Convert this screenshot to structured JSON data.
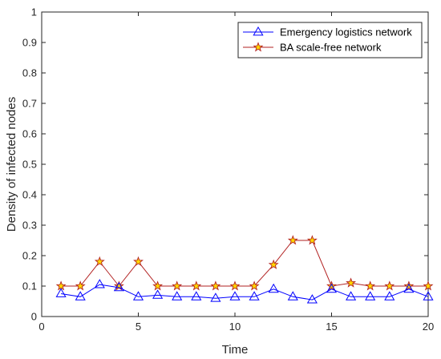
{
  "chart_data": {
    "type": "line",
    "title": "",
    "xlabel": "Time",
    "ylabel": "Density of infected nodes",
    "xlim": [
      0,
      20
    ],
    "ylim": [
      0,
      1
    ],
    "xticks": [
      "0",
      "5",
      "10",
      "15",
      "20"
    ],
    "yticks": [
      "0",
      "0.1",
      "0.2",
      "0.3",
      "0.4",
      "0.5",
      "0.6",
      "0.7",
      "0.8",
      "0.9",
      "1"
    ],
    "grid": false,
    "legend_position": "top-right",
    "x": [
      1,
      2,
      3,
      4,
      5,
      6,
      7,
      8,
      9,
      10,
      11,
      12,
      13,
      14,
      15,
      16,
      17,
      18,
      19,
      20
    ],
    "series": [
      {
        "name": "Emergency logistics network",
        "color": "#0000ff",
        "marker": "triangle",
        "values": [
          0.075,
          0.065,
          0.105,
          0.095,
          0.065,
          0.07,
          0.065,
          0.065,
          0.06,
          0.065,
          0.065,
          0.09,
          0.065,
          0.055,
          0.09,
          0.065,
          0.065,
          0.065,
          0.09,
          0.065
        ]
      },
      {
        "name": "BA scale-free network",
        "color": "#b22222",
        "marker_fill": "#ffd700",
        "marker": "star",
        "values": [
          0.1,
          0.1,
          0.18,
          0.1,
          0.18,
          0.1,
          0.1,
          0.1,
          0.1,
          0.1,
          0.1,
          0.17,
          0.25,
          0.25,
          0.1,
          0.11,
          0.1,
          0.1,
          0.1,
          0.1
        ]
      }
    ]
  }
}
